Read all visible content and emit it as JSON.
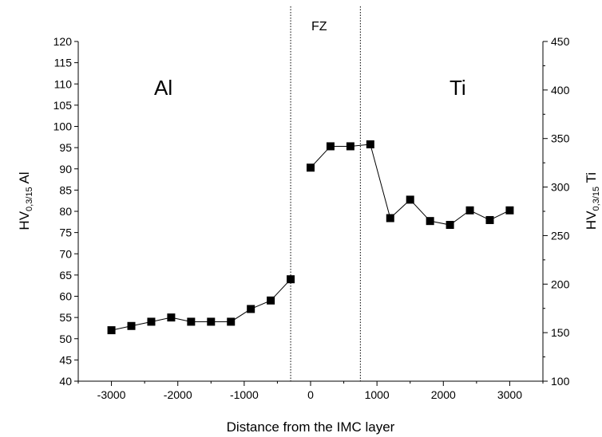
{
  "chart_data": {
    "type": "line",
    "xlabel": "Distance from the IMC layer",
    "ylabel_left": {
      "main": "HV",
      "sub": "0,3/15",
      "suffix": " Al"
    },
    "ylabel_right": {
      "main": "HV",
      "sub": "0,3/15",
      "suffix": " Ti"
    },
    "xlim": [
      -3500,
      3500
    ],
    "ylim_left": [
      40,
      120
    ],
    "ylim_right": [
      100,
      450
    ],
    "x_ticks": [
      "-3000",
      "-2000",
      "-1000",
      "0",
      "1000",
      "2000",
      "3000"
    ],
    "y_left_ticks": [
      "40",
      "45",
      "50",
      "55",
      "60",
      "65",
      "70",
      "75",
      "80",
      "85",
      "90",
      "95",
      "100",
      "105",
      "110",
      "115",
      "120"
    ],
    "y_right_ticks": [
      "100",
      "150",
      "200",
      "250",
      "300",
      "350",
      "400",
      "450"
    ],
    "region_labels": {
      "al": "Al",
      "ti": "Ti",
      "fz": "FZ"
    },
    "fz_boundaries": [
      -300,
      750
    ],
    "series": [
      {
        "axis": "left",
        "x": [
          -3000,
          -2700,
          -2400,
          -2100,
          -1800,
          -1500,
          -1200,
          -900,
          -600,
          -300
        ],
        "y": [
          52,
          53,
          54,
          55,
          54,
          54,
          54,
          57,
          59,
          64
        ]
      },
      {
        "axis": "right",
        "x": [
          0,
          300,
          600,
          900,
          1200,
          1500,
          1800,
          2100,
          2400,
          2700,
          3000
        ],
        "y": [
          320,
          342,
          342,
          344,
          268,
          287,
          265,
          261,
          276,
          266,
          276
        ]
      }
    ],
    "grid": false,
    "marker": "square",
    "color": "#000000"
  }
}
